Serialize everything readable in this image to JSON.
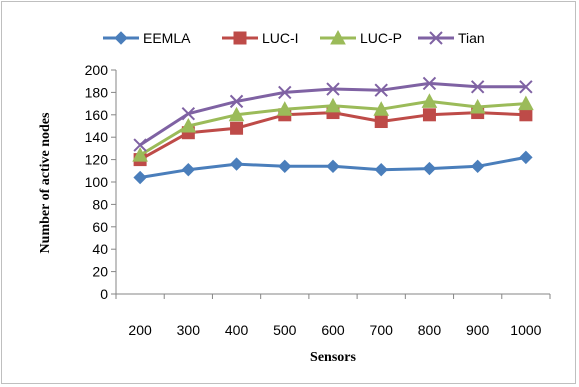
{
  "chart_data": {
    "type": "line",
    "title": "",
    "xlabel": "Sensors",
    "ylabel": "Number of active nodes",
    "categories": [
      "200",
      "300",
      "400",
      "500",
      "600",
      "700",
      "800",
      "900",
      "1000"
    ],
    "ylim": [
      0,
      200
    ],
    "yticks": [
      0,
      20,
      40,
      60,
      80,
      100,
      120,
      140,
      160,
      180,
      200
    ],
    "grid": false,
    "legend_position": "top",
    "series": [
      {
        "name": "EEMLA",
        "color": "#4a7ebb",
        "marker": "diamond",
        "values": [
          104,
          111,
          116,
          114,
          114,
          111,
          112,
          114,
          122
        ]
      },
      {
        "name": "LUC-I",
        "color": "#be4b48",
        "marker": "square",
        "values": [
          120,
          144,
          148,
          160,
          162,
          154,
          160,
          162,
          160
        ]
      },
      {
        "name": "LUC-P",
        "color": "#9bbb59",
        "marker": "triangle",
        "values": [
          124,
          150,
          160,
          165,
          168,
          165,
          172,
          167,
          170
        ]
      },
      {
        "name": "Tian",
        "color": "#7f62a3",
        "marker": "x",
        "values": [
          133,
          161,
          172,
          180,
          183,
          182,
          188,
          185,
          185
        ]
      }
    ]
  }
}
